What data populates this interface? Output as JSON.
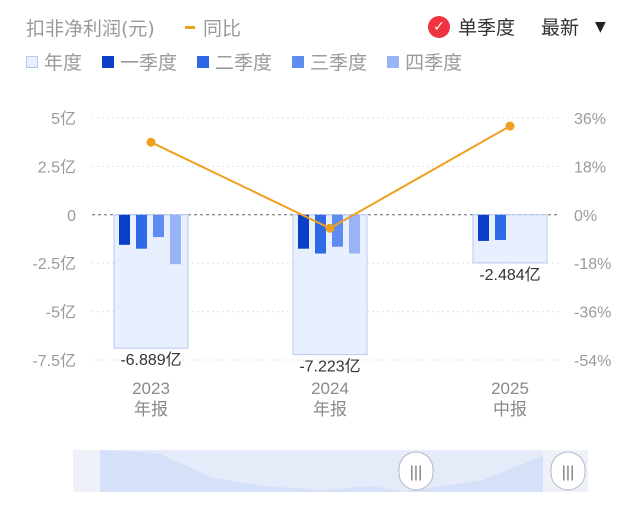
{
  "header": {
    "title": "扣非净利润(元)",
    "yoy_legend": "同比",
    "mode_label": "单季度",
    "latest_label": "最新"
  },
  "legend": [
    {
      "label": "年度",
      "color": "#e8effe",
      "border": "#b8c8f0"
    },
    {
      "label": "一季度",
      "color": "#0b3fc8"
    },
    {
      "label": "二季度",
      "color": "#2f69e6"
    },
    {
      "label": "三季度",
      "color": "#5e8cf0"
    },
    {
      "label": "四季度",
      "color": "#98b4f6"
    }
  ],
  "chart_data": {
    "type": "bar",
    "categories": [
      "2023\n年报",
      "2024\n年报",
      "2025\n中报"
    ],
    "annual": [
      -6.889,
      -7.223,
      -2.484
    ],
    "annual_labels": [
      "-6.889亿",
      "-7.223亿",
      "-2.484亿"
    ],
    "quarters": [
      [
        -1.55,
        -1.75,
        -1.15,
        -2.55
      ],
      [
        -1.75,
        -2.0,
        -1.65,
        -2.0
      ],
      [
        -1.35,
        -1.3
      ]
    ],
    "yoy": [
      27,
      -5,
      33
    ],
    "left_axis": {
      "ticks": [
        5,
        2.5,
        0,
        -2.5,
        -5,
        -7.5
      ],
      "tick_labels": [
        "5亿",
        "2.5亿",
        "0",
        "-2.5亿",
        "-5亿",
        "-7.5亿"
      ],
      "ylim": [
        -7.5,
        5
      ]
    },
    "right_axis": {
      "ticks": [
        36,
        18,
        0,
        -18,
        -36,
        -54
      ],
      "tick_labels": [
        "36%",
        "18%",
        "0%",
        "-18%",
        "-36%",
        "-54%"
      ],
      "ylim": [
        -54,
        36
      ]
    },
    "colors": {
      "annual_fill": "#e8effe",
      "annual_border": "#b8c8f0",
      "yoy_line": "#f0a020",
      "q1": "#0b3fc8",
      "q2": "#2f69e6",
      "q3": "#5e8cf0",
      "q4": "#98b4f6"
    }
  },
  "navigator": {
    "left_handle": "|||",
    "right_handle": "|||"
  }
}
